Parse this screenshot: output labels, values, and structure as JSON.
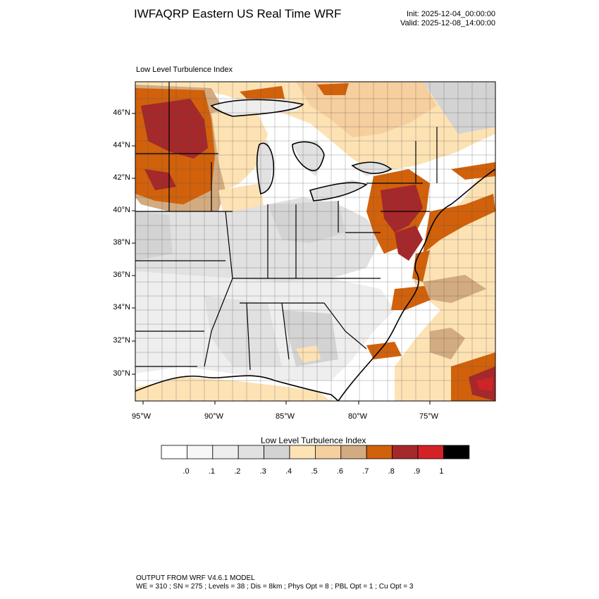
{
  "header": {
    "title": "IWFAQRP Eastern US Real Time WRF",
    "init": "Init: 2025-12-04_00:00:00",
    "valid": "Valid: 2025-12-08_14:00:00"
  },
  "map": {
    "subtitle": "Low Level Turbulence Index",
    "lat_labels": [
      "46°N",
      "44°N",
      "42°N",
      "40°N",
      "38°N",
      "36°N",
      "34°N",
      "32°N",
      "30°N"
    ],
    "lon_labels": [
      "95°W",
      "90°W",
      "85°W",
      "80°W",
      "75°W"
    ]
  },
  "colorbar": {
    "title": "Low Level Turbulence Index",
    "colors": [
      "#ffffff",
      "#f7f7f7",
      "#eeeeee",
      "#e1e1e1",
      "#d3d3d3",
      "#fde2b4",
      "#f6cf9e",
      "#d3ab80",
      "#d1610b",
      "#a5282a",
      "#d42126",
      "#000000"
    ],
    "labels": [
      ".0",
      ".1",
      ".2",
      ".3",
      ".4",
      ".5",
      ".6",
      ".7",
      ".8",
      ".9",
      "1"
    ]
  },
  "footer": {
    "line1": "OUTPUT FROM WRF V4.6.1 MODEL",
    "line2": "WE = 310 ; SN = 275 ; Levels = 38 ; Dis = 8km ; Phys Opt = 8 ; PBL Opt = 1 ; Cu Opt = 3"
  }
}
